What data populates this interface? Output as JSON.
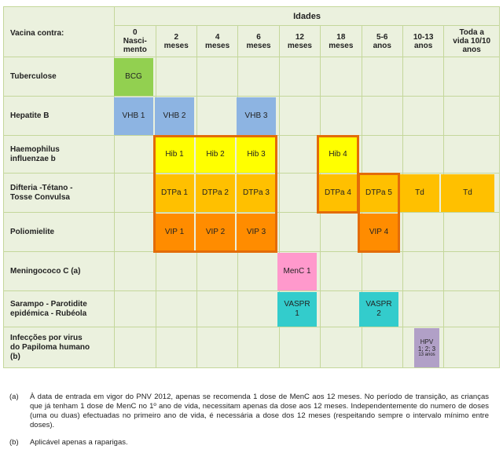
{
  "table": {
    "corner": "Vacina contra:",
    "ages_title": "Idades",
    "ages": [
      [
        "0",
        "Nasci-",
        "mento"
      ],
      [
        "2",
        "meses"
      ],
      [
        "4",
        "meses"
      ],
      [
        "6",
        "meses"
      ],
      [
        "12",
        "meses"
      ],
      [
        "18",
        "meses"
      ],
      [
        "5-6",
        "anos"
      ],
      [
        "10-13",
        "anos"
      ],
      [
        "Toda a",
        "vida 10/10",
        "anos"
      ]
    ],
    "rows": [
      [
        "Tuberculose"
      ],
      [
        "Hepatite B"
      ],
      [
        "Haemophilus",
        "influenzae b"
      ],
      [
        "Difteria -Tétano -",
        "Tosse Convulsa"
      ],
      [
        "Poliomielite"
      ],
      [
        "Meningococo C (a)"
      ],
      [
        "Sarampo - Parotidite",
        "epidémica - Rubéola"
      ],
      [
        "Infecções por virus",
        "do Papiloma humano",
        "(b)"
      ]
    ]
  },
  "vaccines": {
    "bcg": "BCG",
    "vhb1": "VHB 1",
    "vhb2": "VHB 2",
    "vhb3": "VHB 3",
    "hib1": "Hib 1",
    "hib2": "Hib 2",
    "hib3": "Hib 3",
    "hib4": "Hib 4",
    "dtp1": "DTPa 1",
    "dtp2": "DTPa 2",
    "dtp3": "DTPa 3",
    "dtp4": "DTPa 4",
    "dtp5": "DTPa 5",
    "td1": "Td",
    "td2": "Td",
    "vip1": "VIP 1",
    "vip2": "VIP 2",
    "vip3": "VIP 3",
    "vip4": "VIP 4",
    "menc1": "MenC 1",
    "vaspr1_a": "VASPR",
    "vaspr1_b": "1",
    "vaspr2_a": "VASPR",
    "vaspr2_b": "2",
    "hpv_a": "HPV",
    "hpv_b": "1; 2; 3",
    "hpv_c": "13 anos"
  },
  "colors": {
    "grid_bg": "#ebf1de",
    "grid_line": "#c4d79b",
    "highlight": "#e36c09",
    "bcg": "#92d050",
    "vhb": "#8db4e2",
    "hib": "#ffff00",
    "dtp": "#ffc000",
    "vip": "#ff8c00",
    "menc": "#ff99cc",
    "vaspr": "#33cccc",
    "hpv": "#b1a0c7"
  },
  "notes": {
    "a_tag": "(a)",
    "a_text": "À data de entrada em vigor do PNV 2012, apenas se recomenda 1 dose de MenC aos 12 meses. No período de transição, as crianças que já tenham 1 dose de MenC no 1º ano de vida, necessitam apenas da dose aos 12 meses. Independentemente do numero de doses (uma ou duas) efectuadas no primeiro ano de vida, é necessária a dose dos 12 meses (respeitando sempre o intervalo mínimo entre doses).",
    "b_tag": "(b)",
    "b_text": "Aplicável apenas a raparigas."
  }
}
